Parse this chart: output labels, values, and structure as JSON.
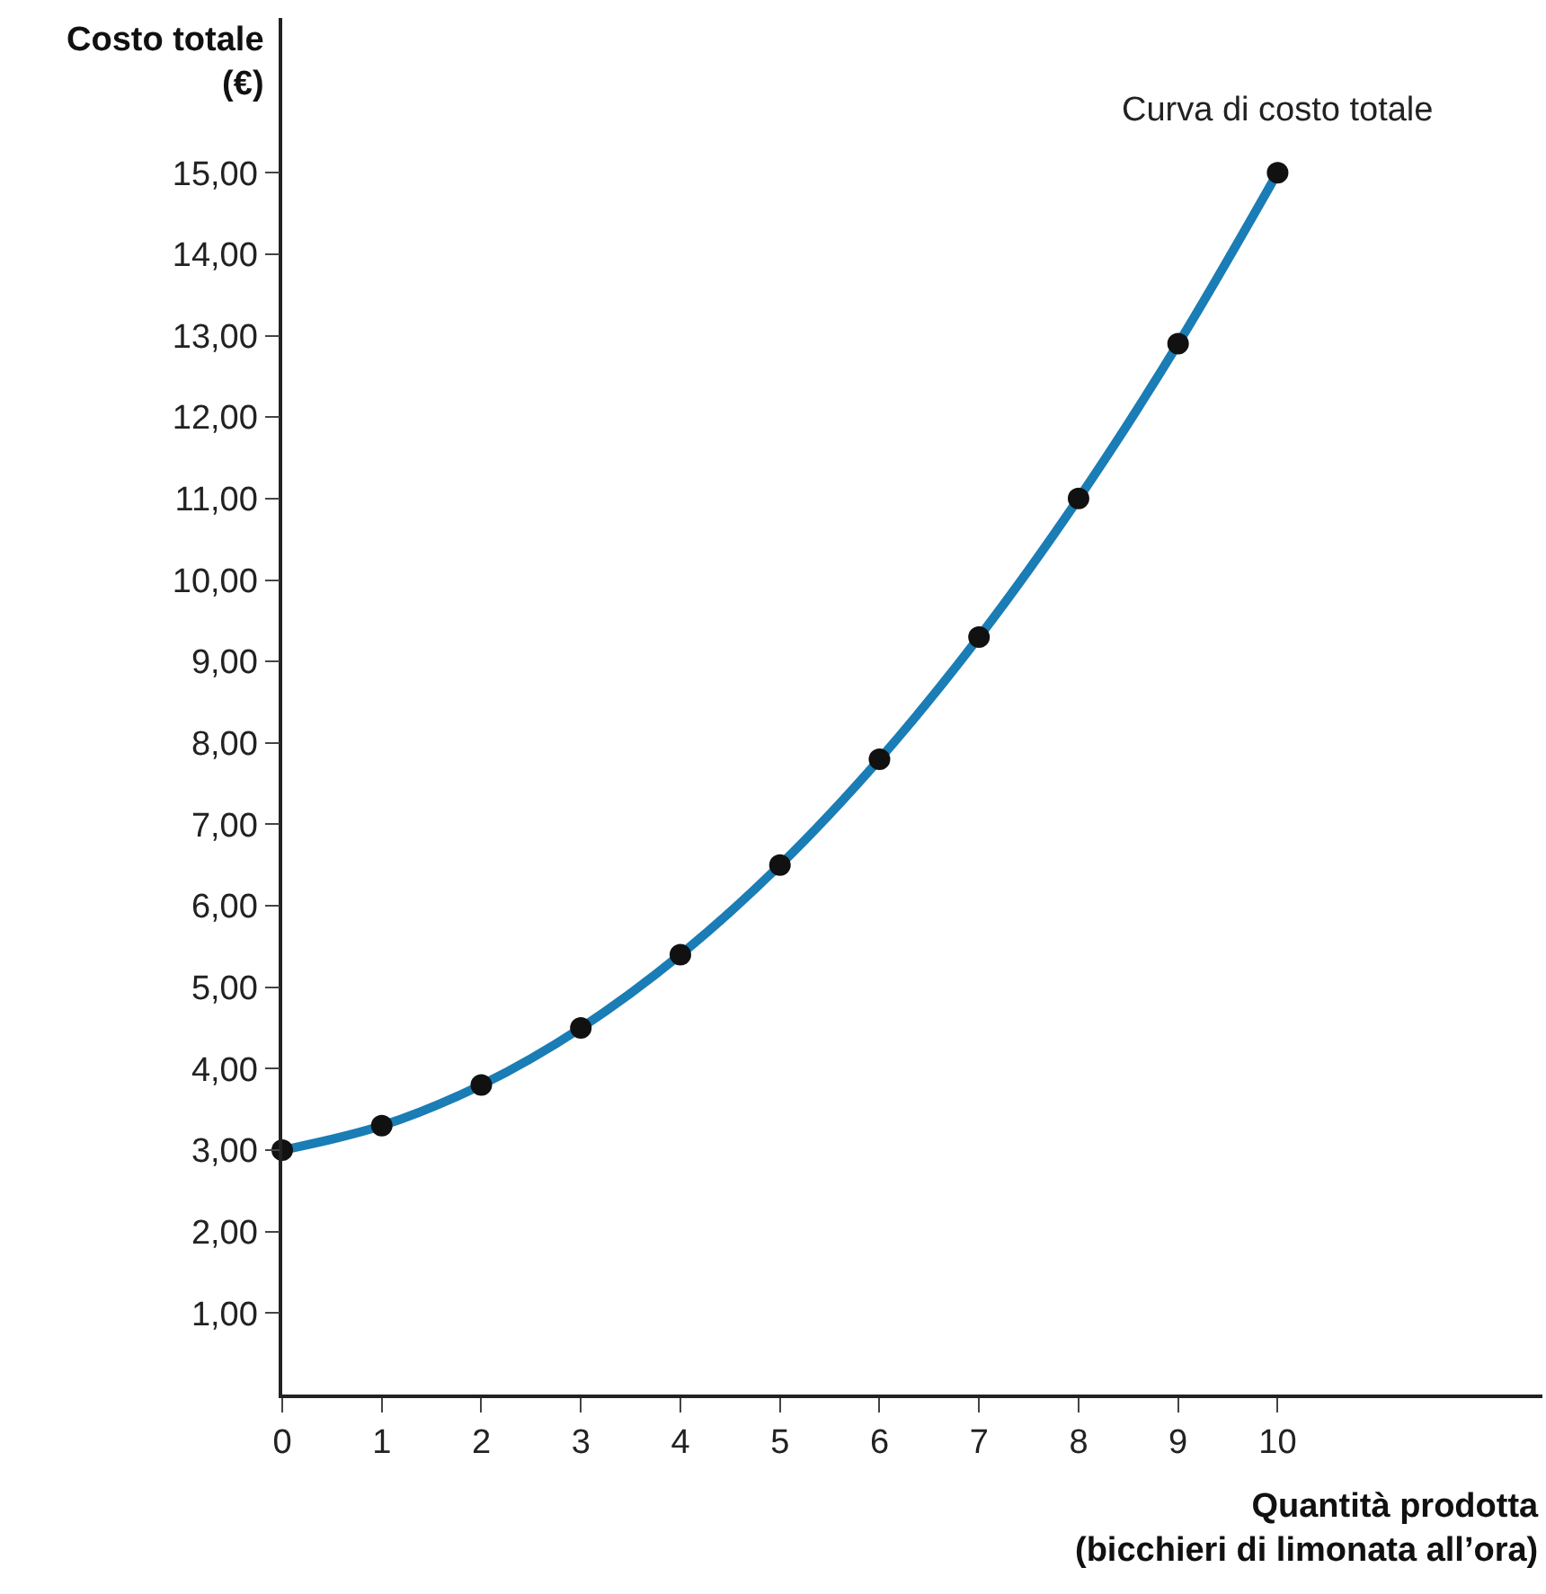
{
  "chart_data": {
    "type": "line",
    "xlabel": "Quantità prodotta\n(bicchieri di limonata all’ora)",
    "ylabel": "Costo totale\n(€)",
    "x": [
      0,
      1,
      2,
      3,
      4,
      5,
      6,
      7,
      8,
      9,
      10
    ],
    "series": [
      {
        "name": "Curva di costo totale",
        "color": "#1a7db5",
        "values": [
          3.0,
          3.3,
          3.8,
          4.5,
          5.4,
          6.5,
          7.8,
          9.3,
          11.0,
          12.9,
          15.0
        ]
      }
    ],
    "xlim": [
      0,
      12.66
    ],
    "ylim": [
      0,
      16.9
    ],
    "xticks": [
      {
        "value": 0,
        "label": "0"
      },
      1,
      2,
      3,
      4,
      5,
      6,
      7,
      8,
      9,
      10
    ],
    "yticks": [
      {
        "value": 1,
        "label": "1,00"
      },
      {
        "value": 2,
        "label": "2,00"
      },
      {
        "value": 3,
        "label": "3,00"
      },
      {
        "value": 4,
        "label": "4,00"
      },
      {
        "value": 5,
        "label": "5,00"
      },
      {
        "value": 6,
        "label": "6,00"
      },
      {
        "value": 7,
        "label": "7,00"
      },
      {
        "value": 8,
        "label": "8,00"
      },
      {
        "value": 9,
        "label": "9,00"
      },
      {
        "value": 10,
        "label": "10,00"
      },
      {
        "value": 11,
        "label": "11,00"
      },
      {
        "value": 12,
        "label": "12,00"
      },
      {
        "value": 13,
        "label": "13,00"
      },
      {
        "value": 14,
        "label": "14,00"
      },
      {
        "value": 15,
        "label": "15,00"
      }
    ],
    "grid": false,
    "legend": false,
    "marker": "circle",
    "line_style": "solid"
  }
}
